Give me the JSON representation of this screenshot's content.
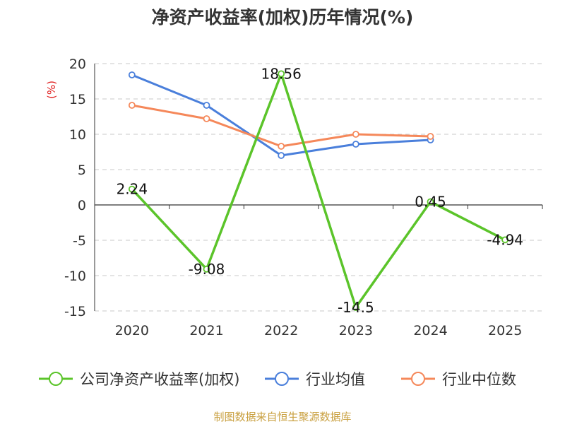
{
  "chart_data": {
    "type": "line",
    "title": "净资产收益率(加权)历年情况(%)",
    "ylabel": "(%)",
    "xlabel": "",
    "categories": [
      "2020",
      "2021",
      "2022",
      "2023",
      "2024",
      "2025"
    ],
    "ylim": [
      -15,
      20
    ],
    "yticks": [
      20,
      15,
      10,
      5,
      0,
      -5,
      -10,
      -15
    ],
    "grid": true,
    "legend_position": "bottom",
    "series": [
      {
        "name": "公司净资产收益率(加权)",
        "color": "#5bc42a",
        "values": [
          2.24,
          -9.08,
          18.56,
          -14.5,
          0.45,
          -4.94
        ],
        "labels": [
          "2.24",
          "-9.08",
          "18.56",
          "-14.5",
          "0.45",
          "-4.94"
        ]
      },
      {
        "name": "行业均值",
        "color": "#4a7fdb",
        "values": [
          18.4,
          14.1,
          7.0,
          8.6,
          9.2,
          null
        ]
      },
      {
        "name": "行业中位数",
        "color": "#f5885a",
        "values": [
          14.1,
          12.2,
          8.3,
          10.0,
          9.7,
          null
        ]
      }
    ]
  },
  "source_text": "制图数据来自恒生聚源数据库"
}
